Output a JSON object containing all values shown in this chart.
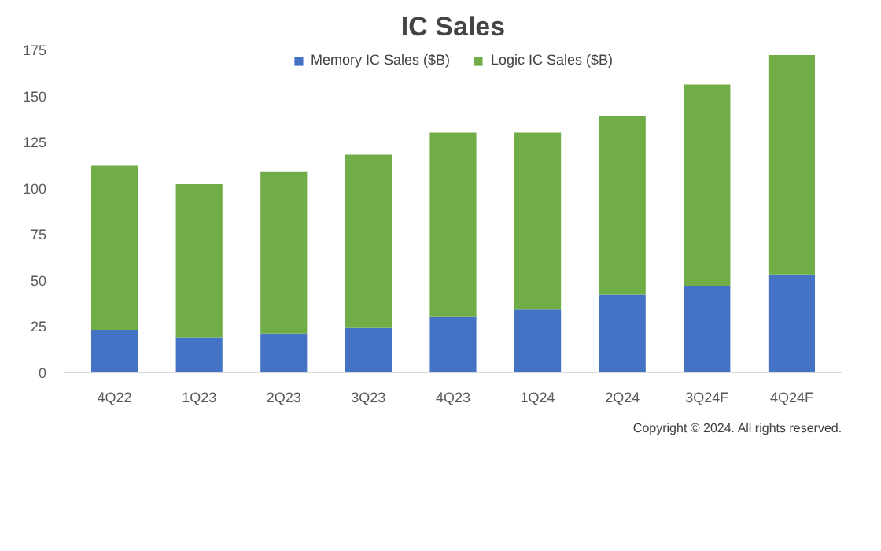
{
  "chart_data": {
    "type": "bar",
    "stacked": true,
    "title": "IC Sales",
    "categories": [
      "4Q22",
      "1Q23",
      "2Q23",
      "3Q23",
      "4Q23",
      "1Q24",
      "2Q24",
      "3Q24F",
      "4Q24F"
    ],
    "series": [
      {
        "name": "Memory IC Sales ($B)",
        "color": "#4472c4",
        "values": [
          23,
          19,
          21,
          24,
          30,
          34,
          42,
          47,
          53
        ]
      },
      {
        "name": "Logic IC Sales ($B)",
        "color": "#70ad47",
        "values": [
          89,
          83,
          88,
          94,
          100,
          96,
          97,
          109,
          119
        ]
      }
    ],
    "ylim": [
      0,
      175
    ],
    "yticks": [
      0,
      25,
      50,
      75,
      100,
      125,
      150,
      175
    ],
    "grid": false,
    "legend": "top",
    "annotations": [
      "Copyright © 2024. All rights reserved."
    ]
  }
}
